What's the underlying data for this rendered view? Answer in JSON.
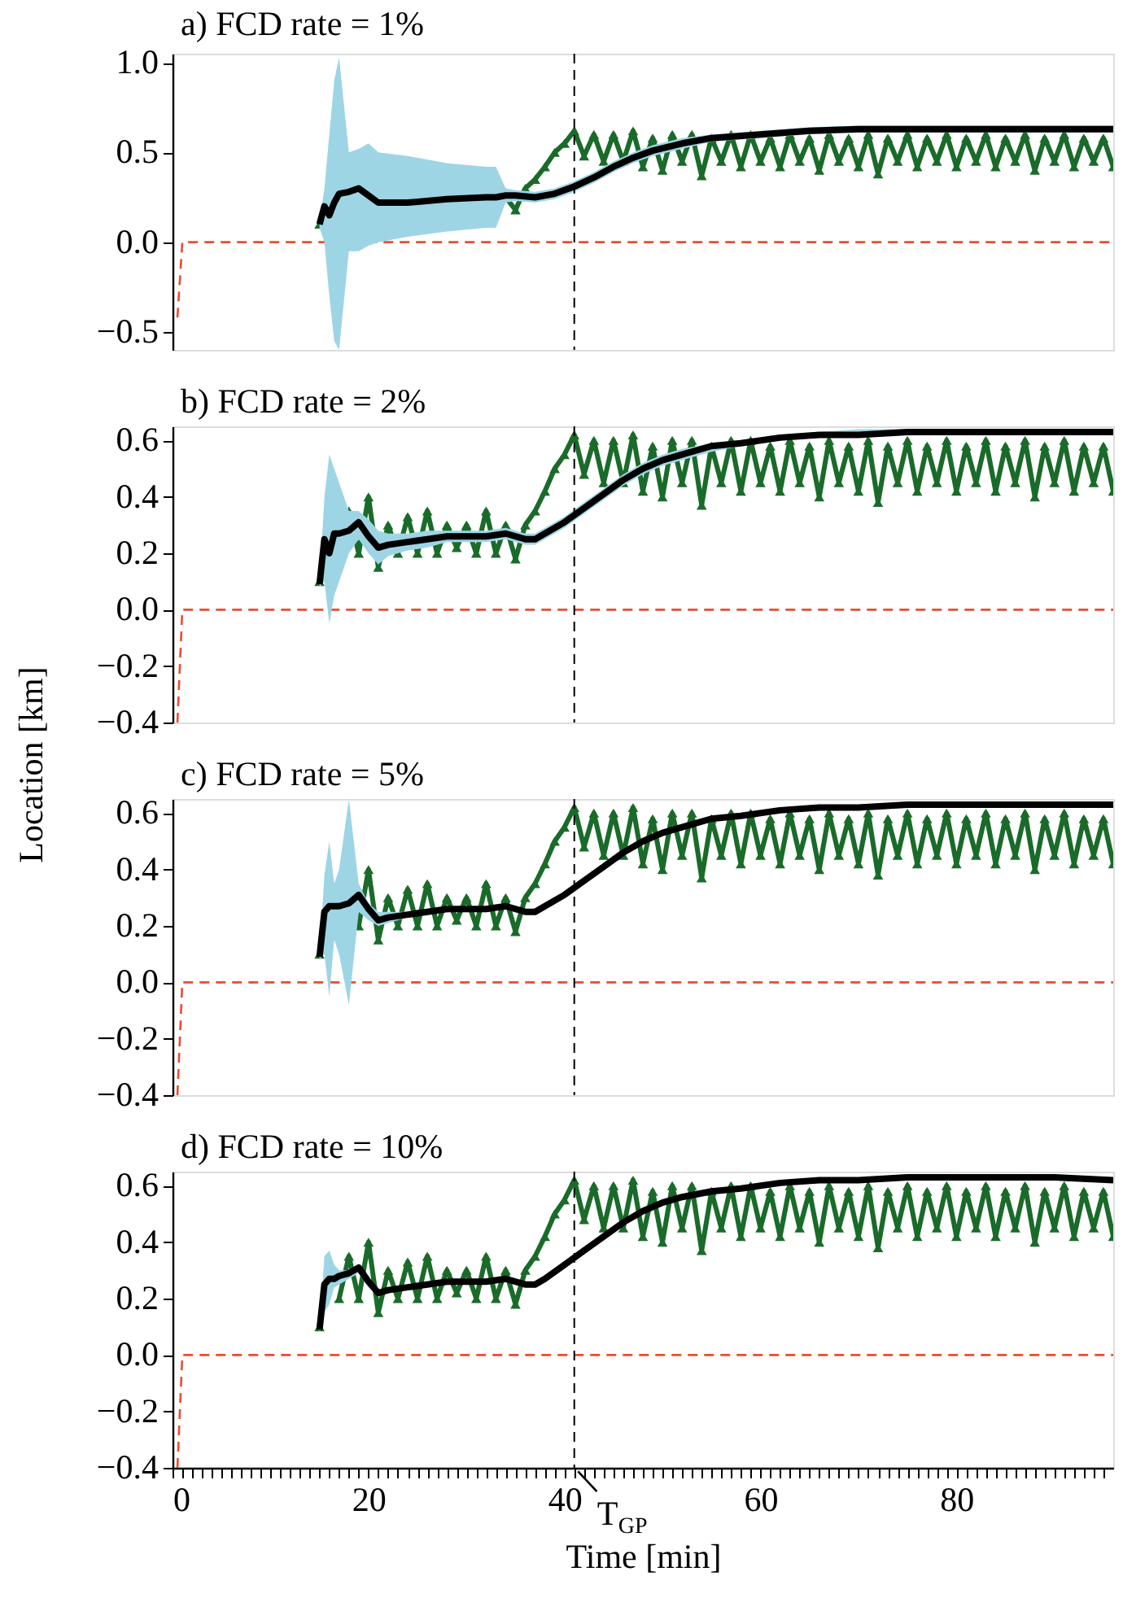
{
  "chart_data": [
    {
      "type": "line",
      "title": "a) FCD rate = 1%",
      "xlim": [
        0,
        96
      ],
      "ylim": [
        -0.6,
        1.05
      ],
      "yticks": [
        {
          "value": -0.5,
          "label": "−0.5"
        },
        {
          "value": 0,
          "label": "0.0"
        },
        {
          "value": 0.5,
          "label": "0.5"
        },
        {
          "value": 1,
          "label": "1.0"
        }
      ],
      "tick_labels": "y",
      "grid": false,
      "ref_lines": [
        {
          "axis": "x",
          "value": 41,
          "color": "#000000",
          "line_style": "dashed"
        }
      ],
      "series": [
        {
          "color": "#f04a30",
          "line_style": "dashed",
          "marker": "none",
          "x": [
            0.5,
            1,
            96
          ],
          "values": [
            -0.42,
            0,
            0
          ]
        },
        {
          "color": "#1a6b2a",
          "marker": "triangle",
          "x": [
            15,
            16,
            17,
            18,
            19,
            20,
            21,
            22,
            23,
            24,
            25,
            26,
            27,
            28,
            29,
            30,
            31,
            32,
            33,
            34,
            35,
            36,
            37,
            38,
            39,
            40,
            41,
            42,
            43,
            44,
            45,
            46,
            47,
            48,
            49,
            50,
            51,
            52,
            53,
            54,
            55,
            56,
            57,
            58,
            59,
            60,
            61,
            62,
            63,
            64,
            65,
            66,
            67,
            68,
            69,
            70,
            71,
            72,
            73,
            74,
            75,
            76,
            77,
            78,
            79,
            80,
            81,
            82,
            83,
            84,
            85,
            86,
            87,
            88,
            89,
            90,
            91,
            92,
            93,
            94,
            95,
            96
          ],
          "values": [
            0.1,
            null,
            null,
            null,
            null,
            null,
            null,
            null,
            null,
            null,
            null,
            null,
            null,
            null,
            null,
            null,
            null,
            null,
            null,
            0.25,
            0.18,
            0.3,
            0.35,
            0.42,
            0.5,
            0.55,
            0.62,
            0.48,
            0.6,
            0.45,
            0.6,
            0.45,
            0.62,
            0.42,
            0.58,
            0.4,
            0.6,
            0.45,
            0.6,
            0.37,
            0.58,
            0.45,
            0.6,
            0.42,
            0.6,
            0.45,
            0.58,
            0.42,
            0.6,
            0.45,
            0.58,
            0.4,
            0.6,
            0.45,
            0.58,
            0.42,
            0.6,
            0.38,
            0.58,
            0.45,
            0.6,
            0.42,
            0.58,
            0.45,
            0.6,
            0.42,
            0.58,
            0.45,
            0.6,
            0.42,
            0.58,
            0.45,
            0.6,
            0.4,
            0.58,
            0.45,
            0.6,
            0.42,
            0.58,
            0.45,
            0.58,
            0.42
          ]
        },
        {
          "color": "#000000",
          "marker": "none",
          "x": [
            15,
            15.5,
            16,
            16.5,
            17,
            18,
            19,
            20,
            21,
            24,
            28,
            32,
            33,
            34,
            35,
            37,
            39,
            41,
            43,
            45,
            47,
            49,
            52,
            55,
            60,
            65,
            70,
            80,
            90,
            96
          ],
          "values": [
            0.1,
            0.2,
            0.15,
            0.22,
            0.27,
            0.28,
            0.3,
            0.26,
            0.22,
            0.22,
            0.24,
            0.25,
            0.25,
            0.26,
            0.26,
            0.25,
            0.27,
            0.31,
            0.36,
            0.42,
            0.47,
            0.51,
            0.55,
            0.58,
            0.6,
            0.62,
            0.63,
            0.63,
            0.63,
            0.63
          ],
          "upper": [
            0.12,
            0.3,
            0.6,
            0.9,
            1.03,
            0.5,
            0.52,
            0.55,
            0.5,
            0.48,
            0.44,
            0.42,
            0.42,
            0.3,
            0.29,
            0.28,
            0.3,
            0.34,
            0.39,
            0.45,
            0.5,
            0.54,
            0.58,
            0.6,
            0.62,
            0.64,
            0.65,
            0.65,
            0.65,
            0.65
          ],
          "lower": [
            0.08,
            0.0,
            -0.3,
            -0.55,
            -0.6,
            -0.05,
            -0.05,
            -0.02,
            0.0,
            0.03,
            0.06,
            0.08,
            0.08,
            0.22,
            0.23,
            0.22,
            0.24,
            0.28,
            0.33,
            0.39,
            0.44,
            0.48,
            0.52,
            0.56,
            0.58,
            0.6,
            0.61,
            0.61,
            0.61,
            0.61
          ]
        }
      ]
    },
    {
      "type": "line",
      "title": "b) FCD rate = 2%",
      "ylabel": "Location [km]",
      "xlim": [
        0,
        96
      ],
      "ylim": [
        -0.4,
        0.65
      ],
      "yticks": [
        {
          "value": -0.4,
          "label": "−0.4"
        },
        {
          "value": -0.2,
          "label": "−0.2"
        },
        {
          "value": 0,
          "label": "0.0"
        },
        {
          "value": 0.2,
          "label": "0.2"
        },
        {
          "value": 0.4,
          "label": "0.4"
        },
        {
          "value": 0.6,
          "label": "0.6"
        }
      ],
      "tick_labels": "y",
      "grid": false,
      "ref_lines": [
        {
          "axis": "x",
          "value": 41,
          "color": "#000000",
          "line_style": "dashed"
        }
      ],
      "series": [
        {
          "color": "#f04a30",
          "line_style": "dashed",
          "marker": "none",
          "x": [
            0.5,
            1,
            96
          ],
          "values": [
            -0.4,
            0,
            0
          ]
        },
        {
          "color": "#1a6b2a",
          "marker": "triangle",
          "x": [
            15,
            16,
            17,
            18,
            19,
            20,
            21,
            22,
            23,
            24,
            25,
            26,
            27,
            28,
            29,
            30,
            31,
            32,
            33,
            34,
            35,
            36,
            37,
            38,
            39,
            40,
            41,
            42,
            43,
            44,
            45,
            46,
            47,
            48,
            49,
            50,
            51,
            52,
            53,
            54,
            55,
            56,
            57,
            58,
            59,
            60,
            61,
            62,
            63,
            64,
            65,
            66,
            67,
            68,
            69,
            70,
            71,
            72,
            73,
            74,
            75,
            76,
            77,
            78,
            79,
            80,
            81,
            82,
            83,
            84,
            85,
            86,
            87,
            88,
            89,
            90,
            91,
            92,
            93,
            94,
            95,
            96
          ],
          "values": [
            0.1,
            null,
            null,
            0.35,
            0.2,
            0.4,
            0.15,
            0.3,
            0.2,
            0.33,
            0.2,
            0.35,
            0.2,
            0.3,
            0.22,
            0.3,
            0.2,
            0.35,
            0.2,
            0.3,
            0.18,
            0.3,
            0.35,
            0.42,
            0.5,
            0.55,
            0.62,
            0.48,
            0.6,
            0.45,
            0.6,
            0.45,
            0.62,
            0.42,
            0.58,
            0.4,
            0.6,
            0.45,
            0.6,
            0.37,
            0.58,
            0.45,
            0.6,
            0.42,
            0.6,
            0.45,
            0.58,
            0.42,
            0.6,
            0.45,
            0.58,
            0.4,
            0.6,
            0.45,
            0.58,
            0.42,
            0.6,
            0.38,
            0.58,
            0.45,
            0.6,
            0.42,
            0.58,
            0.45,
            0.6,
            0.42,
            0.58,
            0.45,
            0.6,
            0.42,
            0.58,
            0.45,
            0.6,
            0.4,
            0.58,
            0.45,
            0.6,
            0.42,
            0.58,
            0.45,
            0.58,
            0.42
          ]
        },
        {
          "color": "#000000",
          "marker": "none",
          "x": [
            15,
            15.5,
            16,
            16.5,
            17,
            18,
            19,
            20,
            21,
            22,
            24,
            26,
            28,
            30,
            32,
            34,
            36,
            37,
            38,
            40,
            42,
            44,
            46,
            48,
            50,
            52,
            55,
            58,
            62,
            66,
            70,
            75,
            80,
            85,
            90,
            96
          ],
          "values": [
            0.09,
            0.25,
            0.2,
            0.27,
            0.27,
            0.28,
            0.31,
            0.26,
            0.22,
            0.23,
            0.24,
            0.25,
            0.26,
            0.26,
            0.26,
            0.27,
            0.25,
            0.25,
            0.27,
            0.31,
            0.36,
            0.41,
            0.46,
            0.5,
            0.53,
            0.55,
            0.58,
            0.59,
            0.61,
            0.62,
            0.62,
            0.63,
            0.63,
            0.63,
            0.63,
            0.63
          ],
          "upper": [
            0.1,
            0.4,
            0.55,
            0.5,
            0.45,
            0.35,
            0.35,
            0.32,
            0.28,
            0.27,
            0.27,
            0.28,
            0.28,
            0.28,
            0.28,
            0.29,
            0.27,
            0.27,
            0.29,
            0.33,
            0.38,
            0.43,
            0.48,
            0.52,
            0.55,
            0.57,
            0.59,
            0.6,
            0.62,
            0.63,
            0.64,
            0.64,
            0.64,
            0.64,
            0.64,
            0.64
          ],
          "lower": [
            0.08,
            0.1,
            -0.05,
            0.05,
            0.1,
            0.2,
            0.25,
            0.2,
            0.16,
            0.19,
            0.21,
            0.22,
            0.24,
            0.24,
            0.24,
            0.25,
            0.23,
            0.23,
            0.25,
            0.29,
            0.34,
            0.39,
            0.44,
            0.48,
            0.51,
            0.53,
            0.56,
            0.58,
            0.6,
            0.61,
            0.61,
            0.62,
            0.62,
            0.62,
            0.62,
            0.62
          ]
        }
      ]
    },
    {
      "type": "line",
      "title": "c) FCD rate = 5%",
      "xlim": [
        0,
        96
      ],
      "ylim": [
        -0.4,
        0.65
      ],
      "yticks": [
        {
          "value": -0.4,
          "label": "−0.4"
        },
        {
          "value": -0.2,
          "label": "−0.2"
        },
        {
          "value": 0,
          "label": "0.0"
        },
        {
          "value": 0.2,
          "label": "0.2"
        },
        {
          "value": 0.4,
          "label": "0.4"
        },
        {
          "value": 0.6,
          "label": "0.6"
        }
      ],
      "tick_labels": "y",
      "grid": false,
      "ref_lines": [
        {
          "axis": "x",
          "value": 41,
          "color": "#000000",
          "line_style": "dashed"
        }
      ],
      "series": [
        {
          "color": "#f04a30",
          "line_style": "dashed",
          "marker": "none",
          "x": [
            0.5,
            1,
            96
          ],
          "values": [
            -0.4,
            0,
            0
          ]
        },
        {
          "color": "#1a6b2a",
          "marker": "triangle",
          "x": [
            15,
            16,
            17,
            18,
            19,
            20,
            21,
            22,
            23,
            24,
            25,
            26,
            27,
            28,
            29,
            30,
            31,
            32,
            33,
            34,
            35,
            36,
            37,
            38,
            39,
            40,
            41,
            42,
            43,
            44,
            45,
            46,
            47,
            48,
            49,
            50,
            51,
            52,
            53,
            54,
            55,
            56,
            57,
            58,
            59,
            60,
            61,
            62,
            63,
            64,
            65,
            66,
            67,
            68,
            69,
            70,
            71,
            72,
            73,
            74,
            75,
            76,
            77,
            78,
            79,
            80,
            81,
            82,
            83,
            84,
            85,
            86,
            87,
            88,
            89,
            90,
            91,
            92,
            93,
            94,
            95,
            96
          ],
          "values": [
            0.1,
            null,
            null,
            null,
            0.2,
            0.4,
            0.15,
            0.3,
            0.2,
            0.33,
            0.2,
            0.35,
            0.2,
            0.3,
            0.22,
            0.3,
            0.2,
            0.35,
            0.2,
            0.3,
            0.18,
            0.3,
            0.35,
            0.42,
            0.5,
            0.55,
            0.62,
            0.48,
            0.6,
            0.45,
            0.6,
            0.45,
            0.62,
            0.42,
            0.58,
            0.4,
            0.6,
            0.45,
            0.6,
            0.37,
            0.58,
            0.45,
            0.6,
            0.42,
            0.6,
            0.45,
            0.58,
            0.42,
            0.6,
            0.45,
            0.58,
            0.4,
            0.6,
            0.45,
            0.58,
            0.42,
            0.6,
            0.38,
            0.58,
            0.45,
            0.6,
            0.42,
            0.58,
            0.45,
            0.6,
            0.42,
            0.58,
            0.45,
            0.6,
            0.42,
            0.58,
            0.45,
            0.6,
            0.4,
            0.58,
            0.45,
            0.6,
            0.42,
            0.58,
            0.45,
            0.58,
            0.42
          ]
        },
        {
          "color": "#000000",
          "marker": "none",
          "x": [
            15,
            15.5,
            16,
            16.5,
            17,
            18,
            19,
            20,
            21,
            22,
            24,
            26,
            28,
            30,
            32,
            34,
            36,
            37,
            38,
            40,
            42,
            44,
            46,
            48,
            50,
            52,
            55,
            58,
            62,
            66,
            70,
            75,
            80,
            85,
            90,
            96
          ],
          "values": [
            0.09,
            0.25,
            0.27,
            0.27,
            0.27,
            0.28,
            0.31,
            0.26,
            0.22,
            0.23,
            0.24,
            0.25,
            0.26,
            0.26,
            0.26,
            0.27,
            0.25,
            0.25,
            0.27,
            0.31,
            0.36,
            0.41,
            0.46,
            0.5,
            0.53,
            0.55,
            0.58,
            0.59,
            0.61,
            0.62,
            0.62,
            0.63,
            0.63,
            0.63,
            0.63,
            0.63
          ],
          "upper": [
            0.1,
            0.38,
            0.5,
            0.35,
            0.4,
            0.65,
            0.35,
            0.28,
            0.25,
            0.25,
            0.25,
            0.26,
            0.27,
            0.27,
            0.27,
            0.28,
            0.26,
            0.26,
            0.28,
            0.32,
            0.37,
            0.42,
            0.47,
            0.51,
            0.54,
            0.56,
            0.59,
            0.6,
            0.62,
            0.63,
            0.63,
            0.64,
            0.64,
            0.64,
            0.64,
            0.64
          ],
          "lower": [
            0.08,
            0.1,
            -0.05,
            0.15,
            0.1,
            -0.08,
            0.25,
            0.22,
            0.2,
            0.21,
            0.23,
            0.24,
            0.25,
            0.25,
            0.25,
            0.26,
            0.24,
            0.24,
            0.26,
            0.3,
            0.35,
            0.4,
            0.45,
            0.49,
            0.52,
            0.54,
            0.57,
            0.58,
            0.6,
            0.61,
            0.61,
            0.62,
            0.62,
            0.62,
            0.62,
            0.62
          ]
        }
      ]
    },
    {
      "type": "line",
      "title": "d) FCD rate = 10%",
      "xlabel": "Time [min]",
      "xlim": [
        0,
        96
      ],
      "ylim": [
        -0.4,
        0.65
      ],
      "yticks": [
        {
          "value": -0.4,
          "label": "−0.4"
        },
        {
          "value": -0.2,
          "label": "−0.2"
        },
        {
          "value": 0,
          "label": "0.0"
        },
        {
          "value": 0.2,
          "label": "0.2"
        },
        {
          "value": 0.4,
          "label": "0.4"
        },
        {
          "value": 0.6,
          "label": "0.6"
        }
      ],
      "xticks": [
        0,
        {
          "value": 1,
          "label": null
        },
        {
          "value": 2,
          "label": null
        },
        {
          "value": 3,
          "label": null
        },
        {
          "value": 4,
          "label": null
        },
        {
          "value": 5,
          "label": null
        },
        {
          "value": 6,
          "label": null
        },
        {
          "value": 7,
          "label": null
        },
        {
          "value": 8,
          "label": null
        },
        {
          "value": 9,
          "label": null
        },
        {
          "value": 10,
          "label": null
        },
        {
          "value": 11,
          "label": null
        },
        {
          "value": 12,
          "label": null
        },
        {
          "value": 13,
          "label": null
        },
        {
          "value": 14,
          "label": null
        },
        {
          "value": 15,
          "label": null
        },
        {
          "value": 16,
          "label": null
        },
        {
          "value": 17,
          "label": null
        },
        {
          "value": 18,
          "label": null
        },
        {
          "value": 19,
          "label": null
        },
        20,
        {
          "value": 21,
          "label": null
        },
        {
          "value": 22,
          "label": null
        },
        {
          "value": 23,
          "label": null
        },
        {
          "value": 24,
          "label": null
        },
        {
          "value": 25,
          "label": null
        },
        {
          "value": 26,
          "label": null
        },
        {
          "value": 27,
          "label": null
        },
        {
          "value": 28,
          "label": null
        },
        {
          "value": 29,
          "label": null
        },
        {
          "value": 30,
          "label": null
        },
        {
          "value": 31,
          "label": null
        },
        {
          "value": 32,
          "label": null
        },
        {
          "value": 33,
          "label": null
        },
        {
          "value": 34,
          "label": null
        },
        {
          "value": 35,
          "label": null
        },
        {
          "value": 36,
          "label": null
        },
        {
          "value": 37,
          "label": null
        },
        {
          "value": 38,
          "label": null
        },
        {
          "value": 39,
          "label": null
        },
        40,
        {
          "value": 41,
          "label": null
        },
        {
          "value": 42,
          "label": null
        },
        {
          "value": 43,
          "label": null
        },
        {
          "value": 44,
          "label": null
        },
        {
          "value": 45,
          "label": null
        },
        {
          "value": 46,
          "label": null
        },
        {
          "value": 47,
          "label": null
        },
        {
          "value": 48,
          "label": null
        },
        {
          "value": 49,
          "label": null
        },
        {
          "value": 50,
          "label": null
        },
        {
          "value": 51,
          "label": null
        },
        {
          "value": 52,
          "label": null
        },
        {
          "value": 53,
          "label": null
        },
        {
          "value": 54,
          "label": null
        },
        {
          "value": 55,
          "label": null
        },
        {
          "value": 56,
          "label": null
        },
        {
          "value": 57,
          "label": null
        },
        {
          "value": 58,
          "label": null
        },
        {
          "value": 59,
          "label": null
        },
        60,
        {
          "value": 61,
          "label": null
        },
        {
          "value": 62,
          "label": null
        },
        {
          "value": 63,
          "label": null
        },
        {
          "value": 64,
          "label": null
        },
        {
          "value": 65,
          "label": null
        },
        {
          "value": 66,
          "label": null
        },
        {
          "value": 67,
          "label": null
        },
        {
          "value": 68,
          "label": null
        },
        {
          "value": 69,
          "label": null
        },
        {
          "value": 70,
          "label": null
        },
        {
          "value": 71,
          "label": null
        },
        {
          "value": 72,
          "label": null
        },
        {
          "value": 73,
          "label": null
        },
        {
          "value": 74,
          "label": null
        },
        {
          "value": 75,
          "label": null
        },
        {
          "value": 76,
          "label": null
        },
        {
          "value": 77,
          "label": null
        },
        {
          "value": 78,
          "label": null
        },
        {
          "value": 79,
          "label": null
        },
        80,
        {
          "value": 81,
          "label": null
        },
        {
          "value": 82,
          "label": null
        },
        {
          "value": 83,
          "label": null
        },
        {
          "value": 84,
          "label": null
        },
        {
          "value": 85,
          "label": null
        },
        {
          "value": 86,
          "label": null
        },
        {
          "value": 87,
          "label": null
        },
        {
          "value": 88,
          "label": null
        },
        {
          "value": 89,
          "label": null
        },
        {
          "value": 90,
          "label": null
        },
        {
          "value": 91,
          "label": null
        },
        {
          "value": 92,
          "label": null
        },
        {
          "value": 93,
          "label": null
        },
        {
          "value": 94,
          "label": null
        },
        {
          "value": 95,
          "label": null
        }
      ],
      "grid": false,
      "ref_lines": [
        {
          "axis": "x",
          "value": 41,
          "color": "#000000",
          "line_style": "dashed"
        }
      ],
      "annotations": [
        {
          "text": "T$_{GP}$",
          "x": 41,
          "y": -0.4
        }
      ],
      "series": [
        {
          "color": "#f04a30",
          "line_style": "dashed",
          "marker": "none",
          "x": [
            0.5,
            1,
            96
          ],
          "values": [
            -0.4,
            0,
            0
          ]
        },
        {
          "color": "#1a6b2a",
          "marker": "triangle",
          "x": [
            15,
            16,
            17,
            18,
            19,
            20,
            21,
            22,
            23,
            24,
            25,
            26,
            27,
            28,
            29,
            30,
            31,
            32,
            33,
            34,
            35,
            36,
            37,
            38,
            39,
            40,
            41,
            42,
            43,
            44,
            45,
            46,
            47,
            48,
            49,
            50,
            51,
            52,
            53,
            54,
            55,
            56,
            57,
            58,
            59,
            60,
            61,
            62,
            63,
            64,
            65,
            66,
            67,
            68,
            69,
            70,
            71,
            72,
            73,
            74,
            75,
            76,
            77,
            78,
            79,
            80,
            81,
            82,
            83,
            84,
            85,
            86,
            87,
            88,
            89,
            90,
            91,
            92,
            93,
            94,
            95,
            96
          ],
          "values": [
            0.1,
            null,
            0.2,
            0.35,
            0.2,
            0.4,
            0.15,
            0.3,
            0.2,
            0.33,
            0.2,
            0.35,
            0.2,
            0.3,
            0.22,
            0.3,
            0.2,
            0.35,
            0.2,
            0.3,
            0.18,
            0.3,
            0.35,
            0.42,
            0.5,
            0.55,
            0.62,
            0.48,
            0.6,
            0.45,
            0.6,
            0.45,
            0.62,
            0.42,
            0.58,
            0.4,
            0.6,
            0.45,
            0.6,
            0.37,
            0.58,
            0.45,
            0.6,
            0.42,
            0.6,
            0.45,
            0.58,
            0.42,
            0.6,
            0.45,
            0.58,
            0.4,
            0.6,
            0.45,
            0.58,
            0.42,
            0.6,
            0.38,
            0.58,
            0.45,
            0.6,
            0.42,
            0.58,
            0.45,
            0.6,
            0.42,
            0.58,
            0.45,
            0.6,
            0.42,
            0.58,
            0.45,
            0.6,
            0.4,
            0.58,
            0.45,
            0.6,
            0.42,
            0.58,
            0.45,
            0.58,
            0.42
          ]
        },
        {
          "color": "#000000",
          "marker": "none",
          "x": [
            15,
            15.5,
            16,
            16.5,
            17,
            18,
            19,
            20,
            21,
            22,
            24,
            26,
            28,
            30,
            32,
            34,
            36,
            37,
            38,
            40,
            42,
            44,
            46,
            48,
            50,
            52,
            55,
            58,
            62,
            66,
            70,
            75,
            80,
            85,
            90,
            96
          ],
          "values": [
            0.09,
            0.25,
            0.27,
            0.27,
            0.28,
            0.29,
            0.31,
            0.26,
            0.22,
            0.23,
            0.24,
            0.25,
            0.26,
            0.26,
            0.26,
            0.27,
            0.25,
            0.25,
            0.27,
            0.32,
            0.37,
            0.42,
            0.47,
            0.51,
            0.54,
            0.56,
            0.58,
            0.59,
            0.61,
            0.62,
            0.62,
            0.63,
            0.63,
            0.63,
            0.63,
            0.62
          ],
          "upper": [
            0.1,
            0.35,
            0.37,
            0.32,
            0.3,
            0.3,
            0.32,
            0.27,
            0.23,
            0.24,
            0.25,
            0.26,
            0.27,
            0.27,
            0.27,
            0.28,
            0.26,
            0.26,
            0.28,
            0.33,
            0.38,
            0.43,
            0.48,
            0.52,
            0.55,
            0.57,
            0.59,
            0.6,
            0.62,
            0.63,
            0.63,
            0.64,
            0.64,
            0.64,
            0.64,
            0.63
          ],
          "lower": [
            0.08,
            0.15,
            0.18,
            0.24,
            0.25,
            0.27,
            0.29,
            0.24,
            0.21,
            0.22,
            0.23,
            0.24,
            0.25,
            0.25,
            0.25,
            0.26,
            0.24,
            0.24,
            0.26,
            0.31,
            0.36,
            0.41,
            0.46,
            0.5,
            0.53,
            0.55,
            0.57,
            0.58,
            0.6,
            0.61,
            0.61,
            0.62,
            0.62,
            0.62,
            0.62,
            0.61
          ]
        }
      ]
    }
  ]
}
